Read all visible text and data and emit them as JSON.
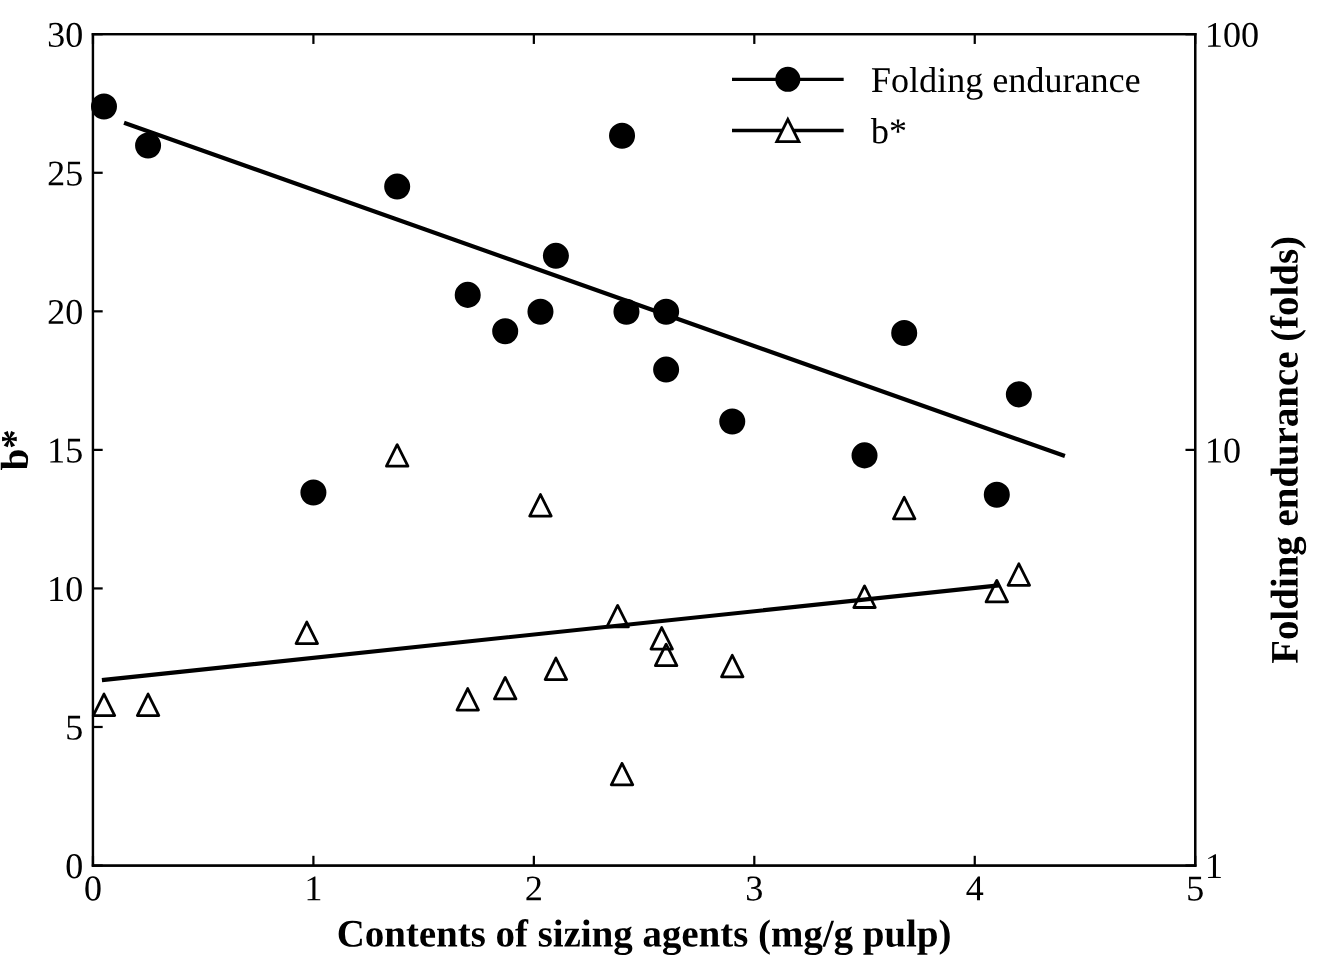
{
  "chart_data": {
    "type": "scatter",
    "xlabel": "Contents of sizing agents (mg/g pulp)",
    "ylabel": "b*",
    "y2label": "Folding endurance (folds)",
    "xlim": [
      0,
      5
    ],
    "xticks": [
      0,
      1,
      2,
      3,
      4,
      5
    ],
    "ylim": [
      0,
      30
    ],
    "yticks": [
      0,
      5,
      10,
      15,
      20,
      25,
      30
    ],
    "y2lim": [
      1,
      100
    ],
    "y2ticks": [
      1,
      10,
      100
    ],
    "log": "y2",
    "legend": "top right",
    "grid": false,
    "series": [
      {
        "name": "Folding endurance",
        "axis": "y2",
        "marker": "circle",
        "color": "#000000",
        "x": [
          0.05,
          0.25,
          1.0,
          1.38,
          1.7,
          1.87,
          2.03,
          2.1,
          2.4,
          2.42,
          2.6,
          2.6,
          2.9,
          3.5,
          3.68,
          4.1,
          4.2
        ],
        "values": [
          67,
          54,
          7.9,
          43,
          23.6,
          19.3,
          21.5,
          29.3,
          57,
          21.5,
          21.5,
          15.6,
          11.7,
          9.7,
          19.1,
          7.8,
          13.6
        ]
      },
      {
        "name": "b*",
        "marker": "triangle",
        "color": "#000000",
        "x": [
          0.05,
          0.25,
          0.97,
          1.38,
          1.7,
          1.87,
          2.03,
          2.1,
          2.38,
          2.4,
          2.58,
          2.6,
          2.9,
          3.5,
          3.68,
          4.1,
          4.2
        ],
        "values": [
          5.8,
          5.8,
          8.4,
          14.8,
          6.0,
          6.4,
          13.0,
          7.1,
          9.0,
          3.3,
          8.2,
          7.6,
          7.2,
          9.7,
          12.9,
          9.9,
          10.5
        ]
      },
      {
        "type": "line",
        "axis": "y2",
        "color": "#000000",
        "line_style": "solid",
        "x": [
          0.15,
          4.4
        ],
        "values": [
          61,
          9.7
        ]
      },
      {
        "type": "line",
        "color": "#000000",
        "line_style": "solid",
        "x": [
          0.05,
          4.1
        ],
        "values": [
          6.7,
          10.1
        ]
      }
    ]
  }
}
